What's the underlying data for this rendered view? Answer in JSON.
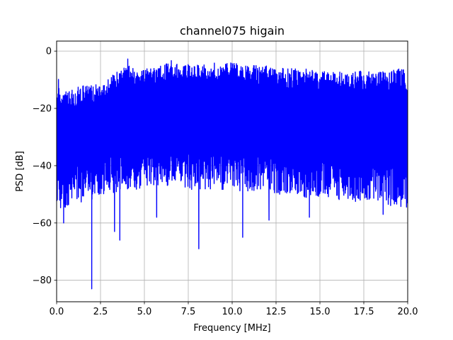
{
  "chart_data": {
    "type": "line",
    "title": "channel075 higain",
    "xlabel": "Frequency [MHz]",
    "ylabel": "PSD [dB]",
    "xlim": [
      0,
      20
    ],
    "ylim": [
      -87.5,
      3.5
    ],
    "xticks": [
      0.0,
      2.5,
      5.0,
      7.5,
      10.0,
      12.5,
      15.0,
      17.5,
      20.0
    ],
    "xtick_labels": [
      "0.0",
      "2.5",
      "5.0",
      "7.5",
      "10.0",
      "12.5",
      "15.0",
      "17.5",
      "20.0"
    ],
    "yticks": [
      0,
      -20,
      -40,
      -60,
      -80
    ],
    "ytick_labels": [
      "0",
      "−20",
      "−40",
      "−60",
      "−80"
    ],
    "grid": true,
    "series": [
      {
        "color": "#0000ff",
        "envelope_upper": {
          "x": [
            0.0,
            0.1,
            0.2,
            0.4,
            0.6,
            0.8,
            1.0,
            1.5,
            2.0,
            2.5,
            3.0,
            3.5,
            4.0,
            4.1,
            4.2,
            4.5,
            5.0,
            6.0,
            6.5,
            7.0,
            8.0,
            9.0,
            10.0,
            11.0,
            12.0,
            13.0,
            14.0,
            15.0,
            16.0,
            17.0,
            18.0,
            19.0,
            19.5,
            20.0
          ],
          "y": [
            -16,
            -8,
            -16,
            -15,
            -13,
            -14,
            -13,
            -12,
            -12,
            -11,
            -9,
            -7,
            -5,
            0,
            -6,
            -6,
            -6,
            -5,
            -3,
            -5,
            -4,
            -4,
            -4,
            -5,
            -5,
            -6,
            -6,
            -7,
            -7,
            -7,
            -7,
            -7,
            -6,
            -7
          ]
        },
        "envelope_lower": {
          "x": [
            0.0,
            0.5,
            1.0,
            1.5,
            2.0,
            3.0,
            4.0,
            5.0,
            6.0,
            7.0,
            8.0,
            9.0,
            10.0,
            11.0,
            12.0,
            13.0,
            14.0,
            15.0,
            16.0,
            17.0,
            18.0,
            19.0,
            20.0
          ],
          "y": [
            -55,
            -55,
            -52,
            -53,
            -52,
            -50,
            -49,
            -48,
            -47,
            -48,
            -49,
            -48,
            -49,
            -49,
            -50,
            -50,
            -51,
            -52,
            -52,
            -53,
            -53,
            -54,
            -55
          ]
        },
        "dips": {
          "x": [
            0.4,
            2.0,
            3.3,
            3.6,
            5.7,
            8.1,
            10.6,
            12.1,
            14.4,
            18.6
          ],
          "y": [
            -60,
            -83,
            -63,
            -66,
            -58,
            -69,
            -65,
            -59,
            -58,
            -57
          ]
        }
      }
    ]
  }
}
